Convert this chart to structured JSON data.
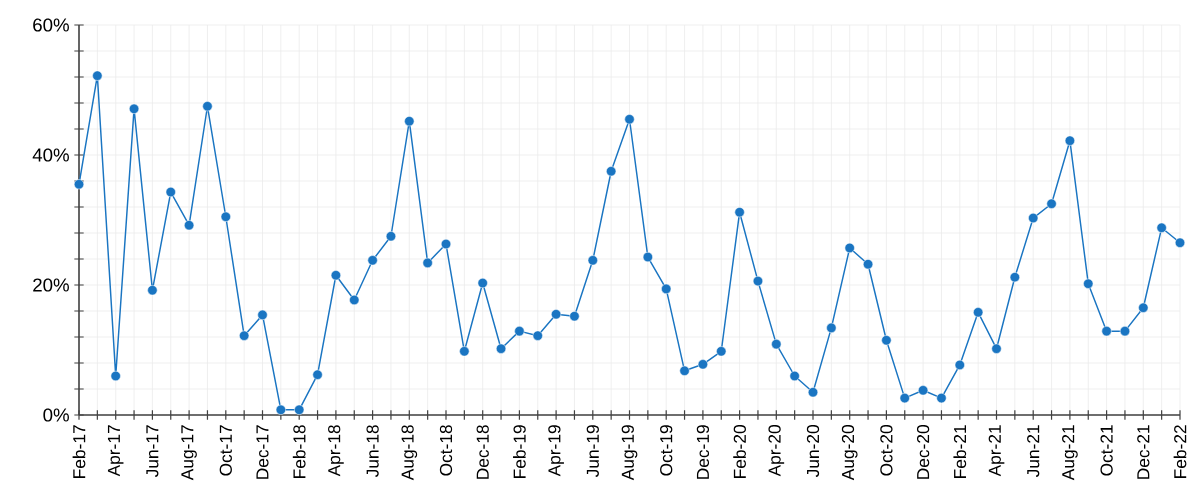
{
  "chart_data": {
    "type": "line",
    "categories": [
      "Feb-17",
      null,
      "Apr-17",
      null,
      "Jun-17",
      null,
      "Aug-17",
      null,
      "Oct-17",
      null,
      "Dec-17",
      null,
      "Feb-18",
      null,
      "Apr-18",
      null,
      "Jun-18",
      null,
      "Aug-18",
      null,
      "Oct-18",
      null,
      "Dec-18",
      null,
      "Feb-19",
      null,
      "Apr-19",
      null,
      "Jun-19",
      null,
      "Aug-19",
      null,
      "Oct-19",
      null,
      "Dec-19",
      null,
      "Feb-20",
      null,
      "Apr-20",
      null,
      "Jun-20",
      null,
      "Aug-20",
      null,
      "Oct-20",
      null,
      "Dec-20",
      null,
      "Feb-21",
      null,
      "Apr-21",
      null,
      "Jun-21",
      null,
      "Aug-21",
      null,
      "Oct-21",
      null,
      "Dec-21",
      null,
      "Feb-22"
    ],
    "series": [
      {
        "color": "#1a75c2",
        "values": [
          35.5,
          52.2,
          6.0,
          47.1,
          19.2,
          34.3,
          29.2,
          47.5,
          30.5,
          12.2,
          15.4,
          0.8,
          0.8,
          6.2,
          21.5,
          17.7,
          23.8,
          27.5,
          45.2,
          23.4,
          26.3,
          9.8,
          20.3,
          10.2,
          12.9,
          12.2,
          15.5,
          15.2,
          23.8,
          37.5,
          45.5,
          24.3,
          19.4,
          6.8,
          7.8,
          9.8,
          31.2,
          20.6,
          10.9,
          6.0,
          3.5,
          13.4,
          25.7,
          23.2,
          11.5,
          2.6,
          3.8,
          2.6,
          7.7,
          15.8,
          10.2,
          21.2,
          30.3,
          32.5,
          42.2,
          20.2,
          12.9,
          12.9,
          16.5,
          28.8,
          26.5
        ]
      }
    ],
    "ylim": [
      0,
      60
    ],
    "yticks": [
      {
        "value": 0,
        "label": "0%"
      },
      {
        "value": 4,
        "label": null
      },
      {
        "value": 8,
        "label": null
      },
      {
        "value": 12,
        "label": null
      },
      {
        "value": 16,
        "label": null
      },
      {
        "value": 20,
        "label": "20%"
      },
      {
        "value": 24,
        "label": null
      },
      {
        "value": 28,
        "label": null
      },
      {
        "value": 32,
        "label": null
      },
      {
        "value": 36,
        "label": null
      },
      {
        "value": 40,
        "label": "40%"
      },
      {
        "value": 44,
        "label": null
      },
      {
        "value": 48,
        "label": null
      },
      {
        "value": 52,
        "label": null
      },
      {
        "value": 56,
        "label": null
      },
      {
        "value": 60,
        "label": "60%"
      }
    ],
    "grid": true,
    "marker": "circle",
    "line_style": "solid"
  }
}
